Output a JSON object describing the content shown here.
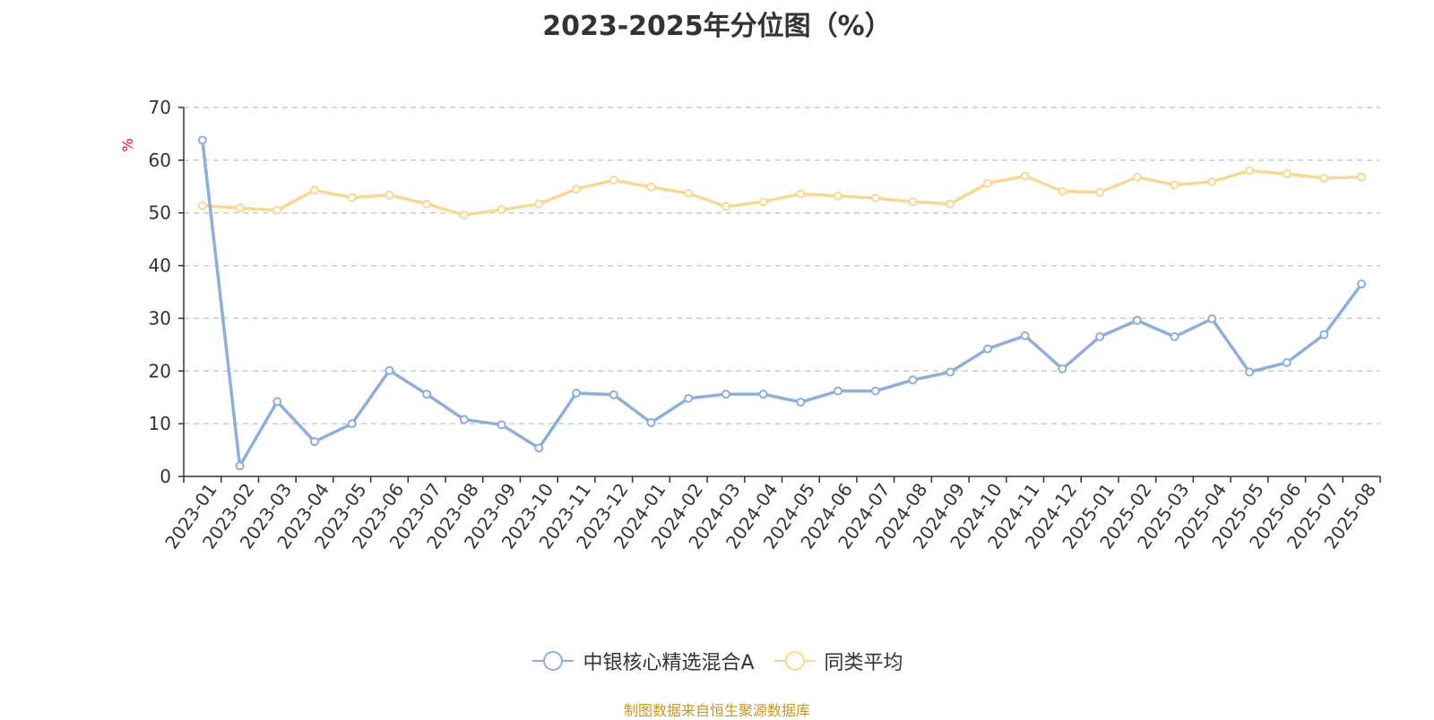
{
  "chart_data": {
    "type": "line",
    "title": "2023-2025年分位图（%）",
    "ylabel": "%",
    "ylim": [
      0,
      70
    ],
    "yticks": [
      0,
      10,
      20,
      30,
      40,
      50,
      60,
      70
    ],
    "grid": true,
    "legend_position": "bottom",
    "categories": [
      "2023-01",
      "2023-02",
      "2023-03",
      "2023-04",
      "2023-05",
      "2023-06",
      "2023-07",
      "2023-08",
      "2023-09",
      "2023-10",
      "2023-11",
      "2023-12",
      "2024-01",
      "2024-02",
      "2024-03",
      "2024-04",
      "2024-05",
      "2024-06",
      "2024-07",
      "2024-08",
      "2024-09",
      "2024-10",
      "2024-11",
      "2024-12",
      "2025-01",
      "2025-02",
      "2025-03",
      "2025-04",
      "2025-05",
      "2025-06",
      "2025-07",
      "2025-08"
    ],
    "series": [
      {
        "name": "中银核心精选混合A",
        "color": "#8eaedb",
        "values": [
          63.8,
          2,
          14.2,
          6.6,
          10,
          20.1,
          15.6,
          10.8,
          9.8,
          5.4,
          15.8,
          15.5,
          10.2,
          14.8,
          15.6,
          15.6,
          14.1,
          16.2,
          16.2,
          18.3,
          19.8,
          24.2,
          26.7,
          20.4,
          26.5,
          29.6,
          26.5,
          29.9,
          19.8,
          21.6,
          26.9,
          36.5
        ]
      },
      {
        "name": "同类平均",
        "color": "#fad793",
        "values": [
          51.4,
          50.9,
          50.5,
          54.3,
          52.9,
          53.4,
          51.7,
          49.6,
          50.6,
          51.7,
          54.5,
          56.2,
          54.9,
          53.7,
          51.2,
          52.1,
          53.6,
          53.2,
          52.8,
          52.1,
          51.7,
          55.6,
          57,
          54.1,
          53.9,
          56.8,
          55.3,
          55.9,
          58,
          57.4,
          56.6,
          56.8
        ]
      }
    ]
  },
  "footer": {
    "source": "制图数据来自恒生聚源数据库"
  }
}
